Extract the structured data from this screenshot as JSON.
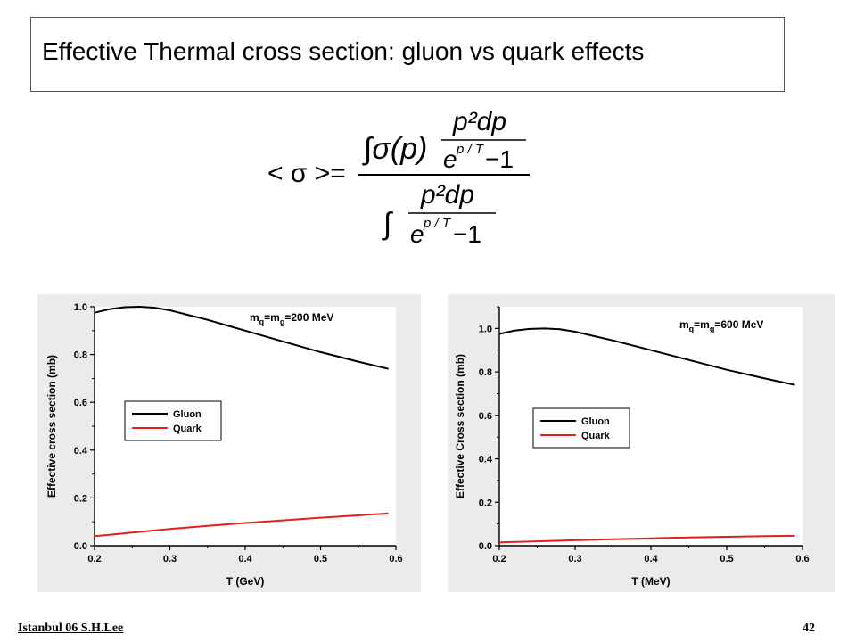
{
  "slide": {
    "title": "Effective Thermal cross section:  gluon vs quark effects",
    "formula": {
      "lhs": "< σ >=",
      "num_integral": "∫σ(p)",
      "frac_num": "p²dp",
      "frac_den_base": "e",
      "frac_den_exp": "p / T",
      "frac_den_tail": " −1"
    },
    "footer_left": "Istanbul 06  S.H.Lee",
    "page_number": "42"
  },
  "chart_data": [
    {
      "type": "line",
      "annotation": "m_q=m_g=200 MeV",
      "annotation_main": "m",
      "annotation_sub1": "q",
      "annotation_mid": "=m",
      "annotation_sub2": "g",
      "annotation_tail": "=200 MeV",
      "xlabel": "T (GeV)",
      "ylabel": "Effective cross section (mb)",
      "xlim": [
        0.2,
        0.6
      ],
      "ylim": [
        0.0,
        1.0
      ],
      "xticks": [
        "0.2",
        "0.3",
        "0.4",
        "0.5",
        "0.6"
      ],
      "yticks": [
        "0.0",
        "0.2",
        "0.4",
        "0.6",
        "0.8",
        "1.0"
      ],
      "legend": "center-left",
      "series": [
        {
          "name": "Gluon",
          "color": "#000000",
          "x": [
            0.2,
            0.22,
            0.24,
            0.26,
            0.28,
            0.3,
            0.35,
            0.4,
            0.45,
            0.5,
            0.55,
            0.59
          ],
          "y": [
            0.975,
            0.99,
            0.998,
            1.0,
            0.996,
            0.985,
            0.945,
            0.9,
            0.855,
            0.81,
            0.77,
            0.74
          ]
        },
        {
          "name": "Quark",
          "color": "#e02020",
          "x": [
            0.2,
            0.25,
            0.3,
            0.35,
            0.4,
            0.45,
            0.5,
            0.55,
            0.59
          ],
          "y": [
            0.04,
            0.055,
            0.07,
            0.083,
            0.095,
            0.106,
            0.117,
            0.127,
            0.135
          ]
        }
      ]
    },
    {
      "type": "line",
      "annotation": "m_q=m_g=600 MeV",
      "annotation_main": "m",
      "annotation_sub1": "q",
      "annotation_mid": "=m",
      "annotation_sub2": "g",
      "annotation_tail": "=600 MeV",
      "xlabel": "T (MeV)",
      "ylabel": "Effective Cross section (mb)",
      "xlim": [
        0.2,
        0.6
      ],
      "ylim": [
        0.0,
        1.1
      ],
      "xticks": [
        "0.2",
        "0.3",
        "0.4",
        "0.5",
        "0.6"
      ],
      "yticks": [
        "0.0",
        "0.2",
        "0.4",
        "0.6",
        "0.8",
        "1.0"
      ],
      "legend": "center-left",
      "series": [
        {
          "name": "Gluon",
          "color": "#000000",
          "x": [
            0.2,
            0.22,
            0.24,
            0.26,
            0.28,
            0.3,
            0.35,
            0.4,
            0.45,
            0.5,
            0.55,
            0.59
          ],
          "y": [
            0.975,
            0.99,
            0.998,
            1.0,
            0.996,
            0.985,
            0.945,
            0.9,
            0.855,
            0.81,
            0.77,
            0.74
          ]
        },
        {
          "name": "Quark",
          "color": "#e02020",
          "x": [
            0.2,
            0.25,
            0.3,
            0.35,
            0.4,
            0.45,
            0.5,
            0.55,
            0.59
          ],
          "y": [
            0.015,
            0.02,
            0.025,
            0.03,
            0.034,
            0.038,
            0.041,
            0.044,
            0.046
          ]
        }
      ]
    }
  ]
}
